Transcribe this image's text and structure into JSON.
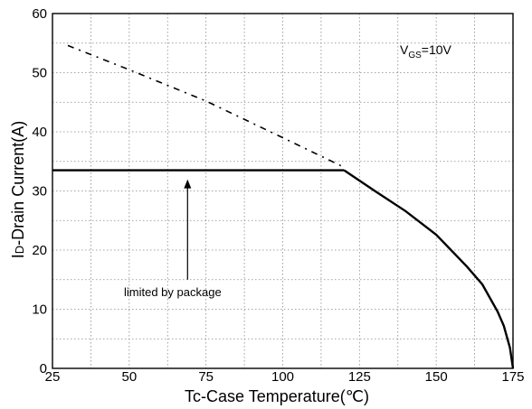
{
  "chart_data": {
    "type": "line",
    "title": "",
    "xlabel": "Tc-Case Temperature(℃)",
    "ylabel_prefix": "I",
    "ylabel_sub": "D",
    "ylabel_rest": "-Drain Current(A)",
    "xlim": [
      25,
      175
    ],
    "ylim": [
      0,
      60
    ],
    "x_ticks": [
      25,
      50,
      75,
      100,
      125,
      150,
      175
    ],
    "y_ticks": [
      0,
      10,
      20,
      30,
      40,
      50,
      60
    ],
    "x_minor_step": 12.5,
    "y_minor_step": 5,
    "grid": "dotted",
    "series": [
      {
        "style": "dash-dot",
        "x": [
          30,
          50,
          75,
          100,
          120
        ],
        "y": [
          54.6,
          50.5,
          45.2,
          39.0,
          34.0
        ]
      },
      {
        "style": "solid",
        "x": [
          25,
          120
        ],
        "y": [
          33.5,
          33.5
        ]
      },
      {
        "style": "solid",
        "x": [
          120,
          130,
          140,
          150,
          160,
          165,
          170,
          172,
          174,
          175
        ],
        "y": [
          33.5,
          30.0,
          26.6,
          22.6,
          17.2,
          14.2,
          9.6,
          7.2,
          3.5,
          0
        ]
      }
    ],
    "annotations": {
      "vgs_main": "V",
      "vgs_sub": "GS",
      "vgs_rest": "=10V",
      "limited": "limited by package",
      "arrow_x": 69,
      "arrow_y_from": 15,
      "arrow_y_to": 33.5
    }
  }
}
